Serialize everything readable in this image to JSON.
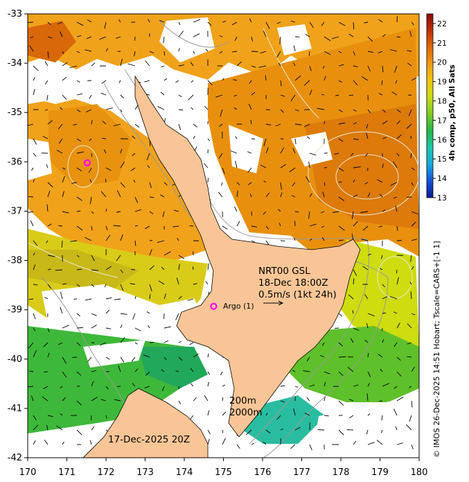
{
  "map": {
    "x_ticks": [
      "170",
      "171",
      "172",
      "173",
      "174",
      "175",
      "176",
      "177",
      "178",
      "179",
      "180"
    ],
    "y_ticks": [
      "-33",
      "-34",
      "-35",
      "-36",
      "-37",
      "-38",
      "-39",
      "-40",
      "-41",
      "-42"
    ],
    "lon_range": [
      170,
      180
    ],
    "lat_range": [
      -42,
      -33
    ]
  },
  "colorbar": {
    "title": "4h comp, p50, All Sats",
    "ticks": [
      "22",
      "21",
      "20",
      "19",
      "18",
      "17",
      "16",
      "15",
      "14",
      "13"
    ],
    "range": [
      13,
      22.5
    ],
    "colors": [
      "#0b1a8c",
      "#1450d8",
      "#19a8e0",
      "#1ac8a8",
      "#22b84a",
      "#7ccc22",
      "#c8dc10",
      "#f0c80a",
      "#f09a10",
      "#e06a08",
      "#c0300a",
      "#8a0a04"
    ]
  },
  "credit": "© IMOS 26-Dec-2025 14:51 Hobart; Tscale=CARS+[-1 1]",
  "annotations": {
    "nrt_line1": "NRT00 GSL",
    "nrt_line2": "18-Dec 18:00Z",
    "nrt_line3": "0.5m/s (1kt 24h)",
    "argo": "Argo (1)",
    "depth1": "200m",
    "depth2": "2000m",
    "date": "17-Dec-2025 20Z"
  },
  "argo_floats": [
    {
      "lon": 171.52,
      "lat": -36.02
    },
    {
      "lon": 174.75,
      "lat": -38.93
    }
  ],
  "land_color": "#f9c596"
}
